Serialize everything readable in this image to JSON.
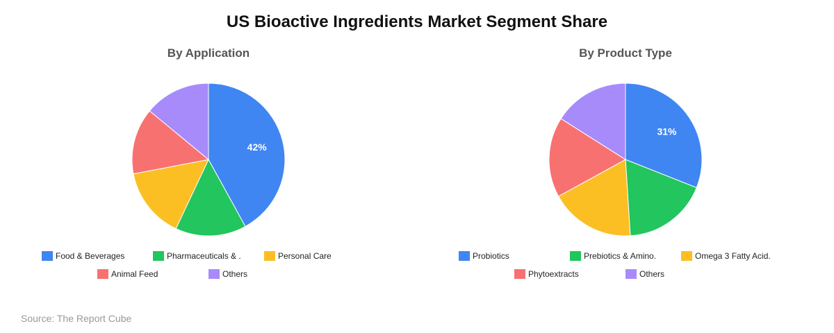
{
  "title": "US Bioactive Ingredients Market Segment Share",
  "source": "Source: The Report Cube",
  "colors": {
    "blue": "#3f86f2",
    "green": "#22c55e",
    "yellow": "#fbbf24",
    "red": "#f87171",
    "purple": "#a78bfa"
  },
  "chart_data": [
    {
      "type": "pie",
      "title": "By Application",
      "labels": [
        "Food & Beverages",
        "Pharmaceuticals & .",
        "Personal Care",
        "Animal Feed",
        "Others"
      ],
      "values": [
        42,
        15,
        15,
        14,
        14
      ],
      "colors": [
        "#3f86f2",
        "#22c55e",
        "#fbbf24",
        "#f87171",
        "#a78bfa"
      ],
      "data_labels": [
        "42%",
        "",
        "",
        "",
        ""
      ]
    },
    {
      "type": "pie",
      "title": "By Product Type",
      "labels": [
        "Probiotics",
        "Prebiotics & Amino.",
        "Omega 3 Fatty Acid.",
        "Phytoextracts",
        "Others"
      ],
      "values": [
        31,
        18,
        18,
        17,
        16
      ],
      "colors": [
        "#3f86f2",
        "#22c55e",
        "#fbbf24",
        "#f87171",
        "#a78bfa"
      ],
      "data_labels": [
        "31%",
        "",
        "",
        "",
        ""
      ]
    }
  ]
}
